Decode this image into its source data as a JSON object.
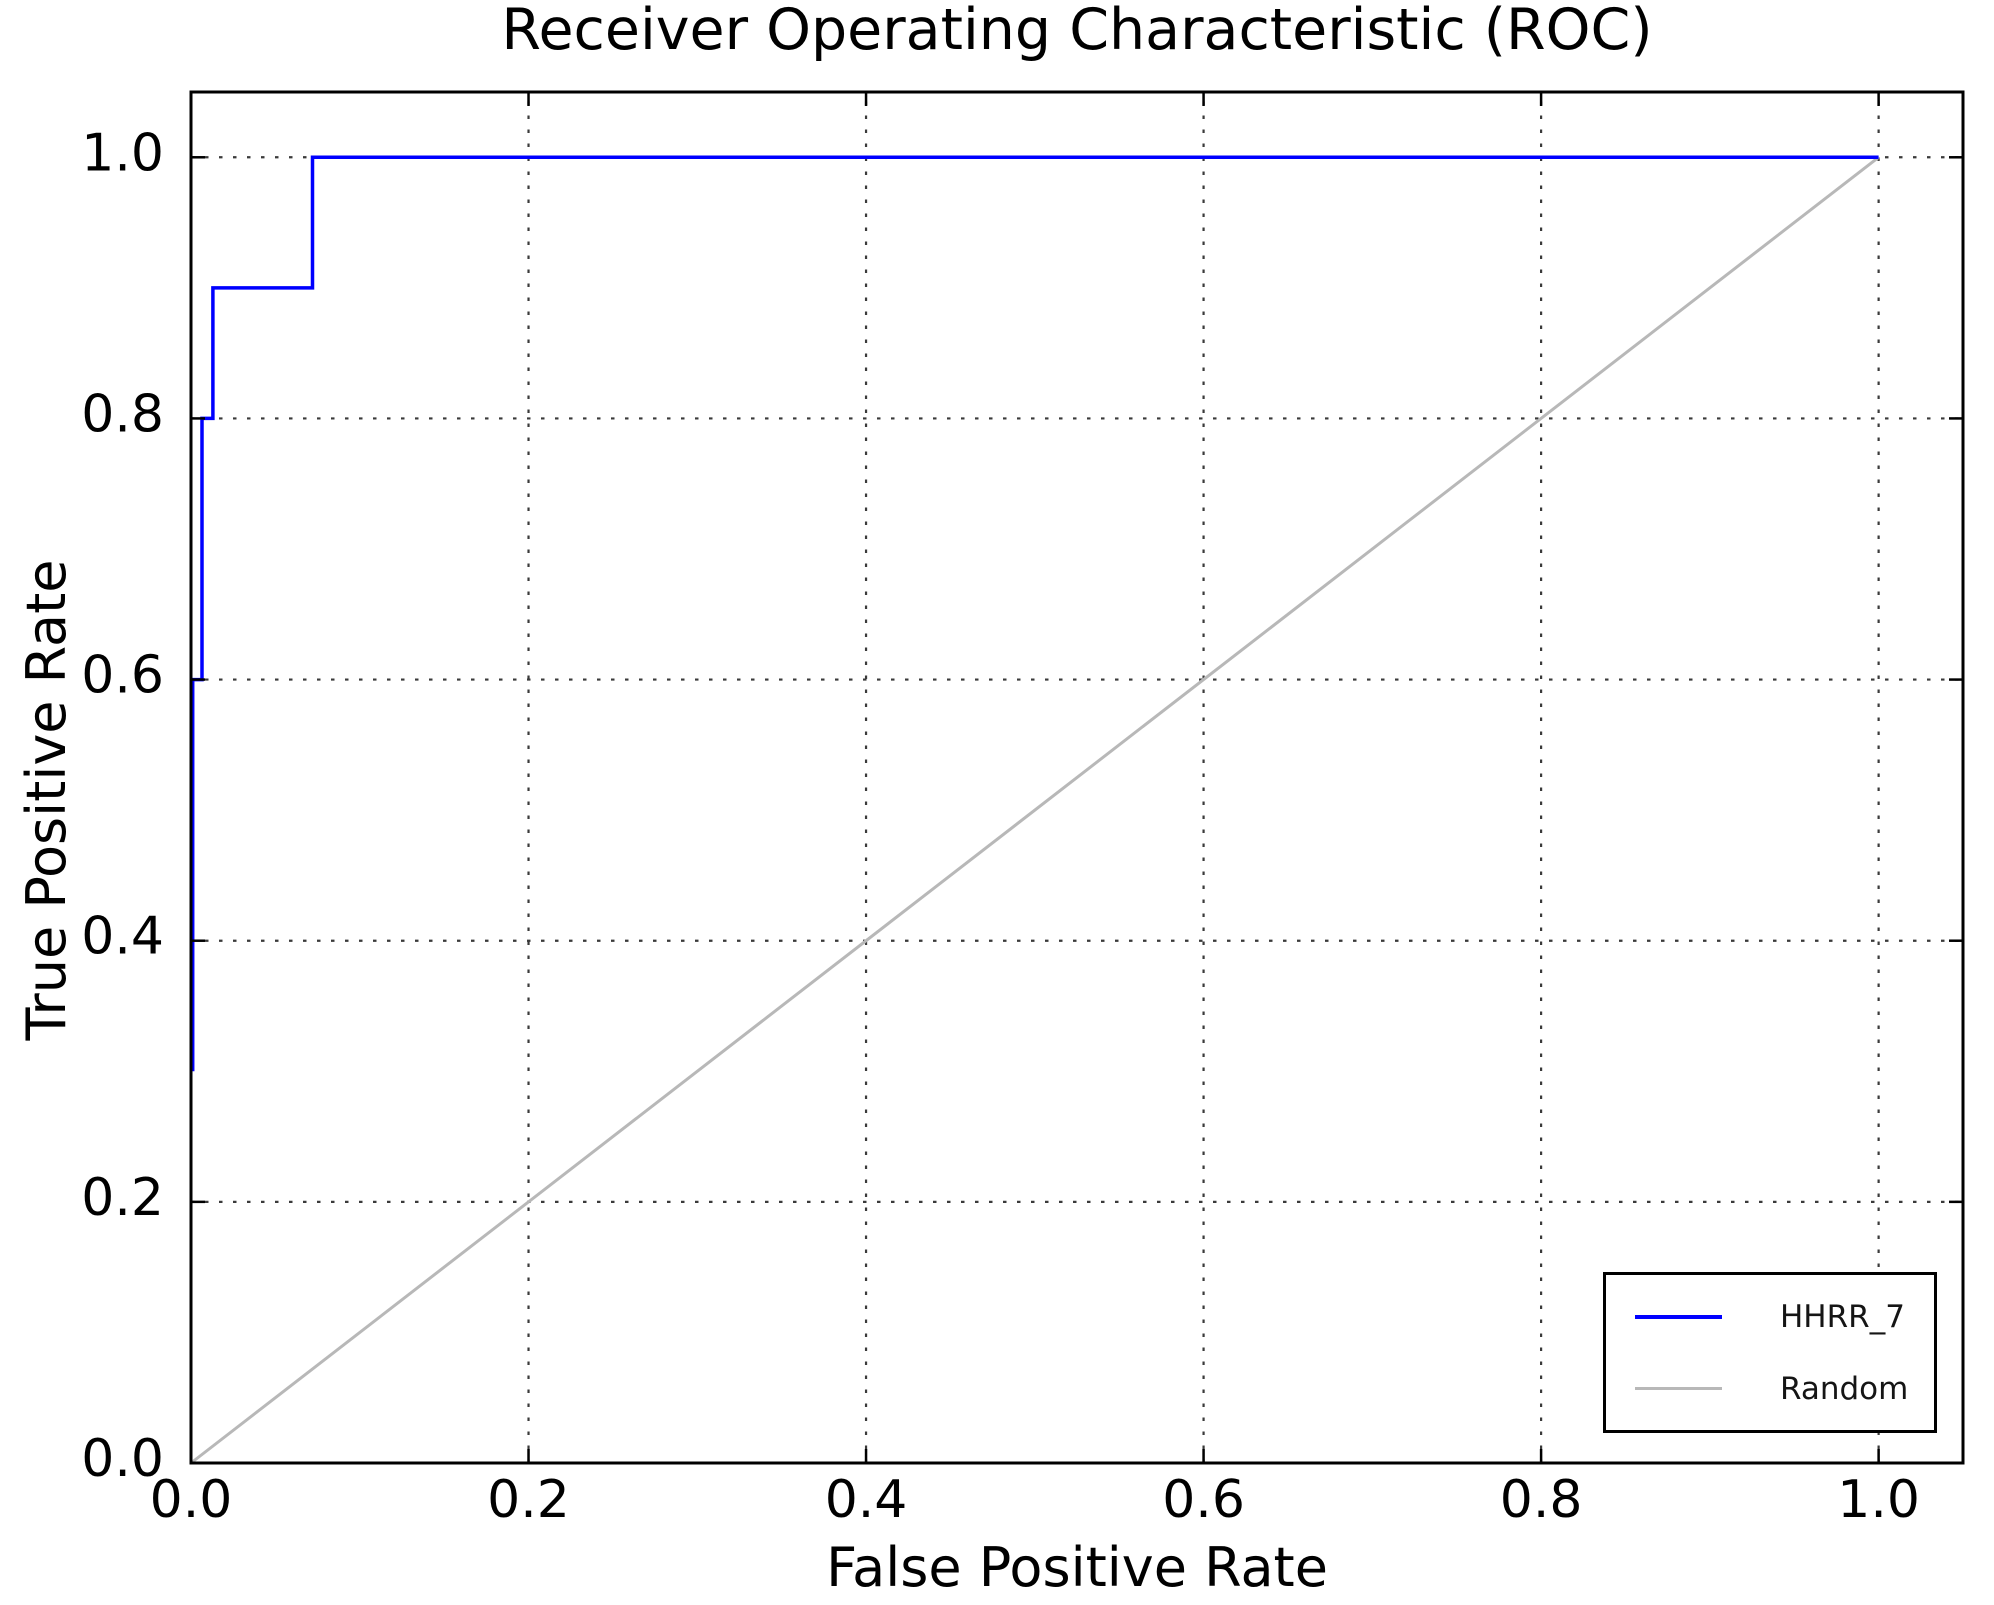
{
  "figure": {
    "title": "Receiver Operating Characteristic (ROC)",
    "xlabel": "False Positive Rate",
    "ylabel": "True Positive Rate"
  },
  "legend": {
    "position": "lower right",
    "items": [
      {
        "label": "HHRR_7",
        "color": "#0000ff",
        "line_width": 4
      },
      {
        "label": "Random",
        "color": "#b8b8b8",
        "line_width": 3
      }
    ]
  },
  "chart_data": {
    "type": "line",
    "title": "Receiver Operating Characteristic (ROC)",
    "xlabel": "False Positive Rate",
    "ylabel": "True Positive Rate",
    "xlim": [
      0.0,
      1.05
    ],
    "ylim": [
      0.0,
      1.05
    ],
    "xticks": [
      0.0,
      0.2,
      0.4,
      0.6,
      0.8,
      1.0
    ],
    "yticks": [
      0.0,
      0.2,
      0.4,
      0.6,
      0.8,
      1.0
    ],
    "xtick_labels": [
      "0.0",
      "0.2",
      "0.4",
      "0.6",
      "0.8",
      "1.0"
    ],
    "ytick_labels": [
      "0.0",
      "0.2",
      "0.4",
      "0.6",
      "0.8",
      "1.0"
    ],
    "grid": {
      "visible": true,
      "style": "dotted",
      "color": "#3a3a3a"
    },
    "legend_position": "lower right",
    "axes_color": "#000000",
    "background_color": "#ffffff",
    "series": [
      {
        "name": "HHRR_7",
        "kind": "roc-step-curve",
        "color": "#0000ff",
        "line_width": 3.5,
        "points": [
          [
            0.001,
            0.3
          ],
          [
            0.001,
            0.6
          ],
          [
            0.0065,
            0.6
          ],
          [
            0.0065,
            0.8
          ],
          [
            0.013,
            0.8
          ],
          [
            0.013,
            0.9
          ],
          [
            0.072,
            0.9
          ],
          [
            0.072,
            1.0
          ],
          [
            1.0,
            1.0
          ]
        ]
      },
      {
        "name": "Random",
        "kind": "diagonal-reference-line",
        "color": "#b8b8b8",
        "line_width": 3,
        "points": [
          [
            0.0,
            0.0
          ],
          [
            1.0,
            1.0
          ]
        ]
      }
    ]
  }
}
